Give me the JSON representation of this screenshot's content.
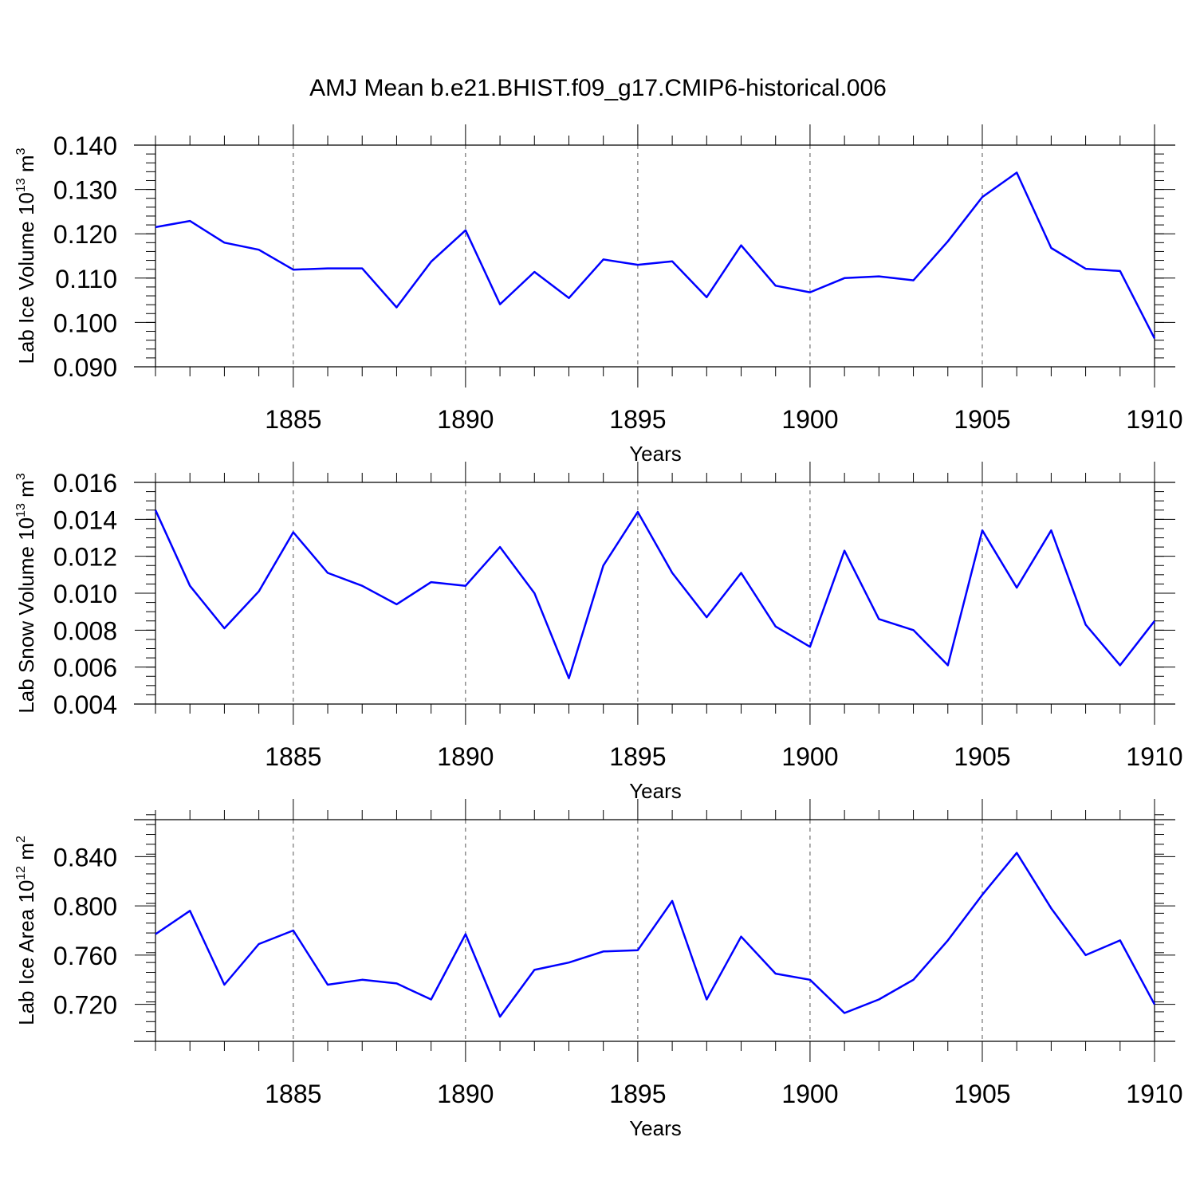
{
  "title": "AMJ Mean b.e21.BHIST.f09_g17.CMIP6-historical.006",
  "colors": {
    "line": "#0000ff",
    "axis": "#000000",
    "grid": "#555555"
  },
  "chart_data": [
    {
      "type": "line",
      "ylabel": "Lab Ice Volume 10",
      "ylabel_exp": "13",
      "ylabel_unit": " m",
      "ylabel_unit_exp": "3",
      "xlabel": "Years",
      "xlim": [
        1881,
        1910
      ],
      "ylim": [
        0.09,
        0.14
      ],
      "yticks": [
        0.09,
        0.1,
        0.11,
        0.12,
        0.13,
        0.14
      ],
      "ytick_labels": [
        "0.090",
        "0.100",
        "0.110",
        "0.120",
        "0.130",
        "0.140"
      ],
      "yminor_step": 0.002,
      "xticks": [
        1885,
        1890,
        1895,
        1900,
        1905,
        1910
      ],
      "xtick_labels": [
        "1885",
        "1890",
        "1895",
        "1900",
        "1905",
        "1910"
      ],
      "x": [
        1881,
        1882,
        1883,
        1884,
        1885,
        1886,
        1887,
        1888,
        1889,
        1890,
        1891,
        1892,
        1893,
        1894,
        1895,
        1896,
        1897,
        1898,
        1899,
        1900,
        1901,
        1902,
        1903,
        1904,
        1905,
        1906,
        1907,
        1908,
        1909,
        1910
      ],
      "values": [
        0.1215,
        0.1229,
        0.118,
        0.1164,
        0.1119,
        0.1122,
        0.1122,
        0.1034,
        0.1137,
        0.1208,
        0.1041,
        0.1114,
        0.1055,
        0.1142,
        0.113,
        0.1138,
        0.1057,
        0.1174,
        0.1083,
        0.1068,
        0.11,
        0.1104,
        0.1095,
        0.1183,
        0.1283,
        0.1338,
        0.1168,
        0.1121,
        0.1116,
        0.0964
      ]
    },
    {
      "type": "line",
      "ylabel": "Lab Snow Volume 10",
      "ylabel_exp": "13",
      "ylabel_unit": " m",
      "ylabel_unit_exp": "3",
      "xlabel": "Years",
      "xlim": [
        1881,
        1910
      ],
      "ylim": [
        0.004,
        0.016
      ],
      "yticks": [
        0.004,
        0.006,
        0.008,
        0.01,
        0.012,
        0.014,
        0.016
      ],
      "ytick_labels": [
        "0.004",
        "0.006",
        "0.008",
        "0.010",
        "0.012",
        "0.014",
        "0.016"
      ],
      "yminor_step": 0.0005,
      "xticks": [
        1885,
        1890,
        1895,
        1900,
        1905,
        1910
      ],
      "xtick_labels": [
        "1885",
        "1890",
        "1895",
        "1900",
        "1905",
        "1910"
      ],
      "x": [
        1881,
        1882,
        1883,
        1884,
        1885,
        1886,
        1887,
        1888,
        1889,
        1890,
        1891,
        1892,
        1893,
        1894,
        1895,
        1896,
        1897,
        1898,
        1899,
        1900,
        1901,
        1902,
        1903,
        1904,
        1905,
        1906,
        1907,
        1908,
        1909,
        1910
      ],
      "values": [
        0.0145,
        0.0104,
        0.0081,
        0.0101,
        0.0133,
        0.0111,
        0.0104,
        0.0094,
        0.0106,
        0.0104,
        0.0125,
        0.01,
        0.0054,
        0.0115,
        0.0144,
        0.0111,
        0.0087,
        0.0111,
        0.0082,
        0.0071,
        0.0123,
        0.0086,
        0.008,
        0.0061,
        0.0134,
        0.0103,
        0.0134,
        0.0083,
        0.0061,
        0.0085
      ]
    },
    {
      "type": "line",
      "ylabel": "Lab Ice Area 10",
      "ylabel_exp": "12",
      "ylabel_unit": " m",
      "ylabel_unit_exp": "2",
      "xlabel": "Years",
      "xlim": [
        1881,
        1910
      ],
      "ylim": [
        0.69,
        0.87
      ],
      "yticks": [
        0.72,
        0.76,
        0.8,
        0.84
      ],
      "ytick_labels": [
        "0.720",
        "0.760",
        "0.800",
        "0.840"
      ],
      "yminor_step": 0.008,
      "xticks": [
        1885,
        1890,
        1895,
        1900,
        1905,
        1910
      ],
      "xtick_labels": [
        "1885",
        "1890",
        "1895",
        "1900",
        "1905",
        "1910"
      ],
      "x": [
        1881,
        1882,
        1883,
        1884,
        1885,
        1886,
        1887,
        1888,
        1889,
        1890,
        1891,
        1892,
        1893,
        1894,
        1895,
        1896,
        1897,
        1898,
        1899,
        1900,
        1901,
        1902,
        1903,
        1904,
        1905,
        1906,
        1907,
        1908,
        1909,
        1910
      ],
      "values": [
        0.777,
        0.796,
        0.736,
        0.769,
        0.78,
        0.736,
        0.74,
        0.737,
        0.724,
        0.777,
        0.71,
        0.748,
        0.754,
        0.763,
        0.764,
        0.804,
        0.724,
        0.775,
        0.745,
        0.74,
        0.713,
        0.724,
        0.74,
        0.772,
        0.809,
        0.843,
        0.798,
        0.76,
        0.772,
        0.72
      ]
    }
  ]
}
